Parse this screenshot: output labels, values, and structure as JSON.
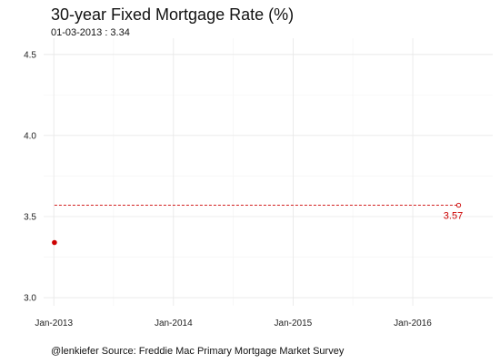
{
  "chart_data": {
    "type": "line",
    "title": "30-year Fixed Mortgage Rate (%)",
    "subtitle": "01-03-2013 : 3.34",
    "caption": "@lenkiefer Source: Freddie Mac Primary Mortgage Market Survey",
    "xlabel": "",
    "ylabel": "",
    "x_ticks": [
      "Jan-2013",
      "Jan-2014",
      "Jan-2015",
      "Jan-2016"
    ],
    "x_tick_values": [
      "2013-01-01",
      "2014-01-01",
      "2015-01-01",
      "2016-01-01"
    ],
    "xlim": [
      "2012-12-01",
      "2016-09-01"
    ],
    "y_ticks": [
      3.0,
      3.5,
      4.0,
      4.5
    ],
    "ylim": [
      2.95,
      4.6
    ],
    "grid": true,
    "series": [
      {
        "points": [
          {
            "x": "2013-01-03",
            "y": 3.34
          }
        ],
        "color": "#cc0000"
      }
    ],
    "reference": {
      "y": 3.57,
      "x_start": "2013-01-03",
      "x_end": "2016-05-20",
      "label": "3.57",
      "color": "#cc0000",
      "style": "dashed"
    }
  }
}
